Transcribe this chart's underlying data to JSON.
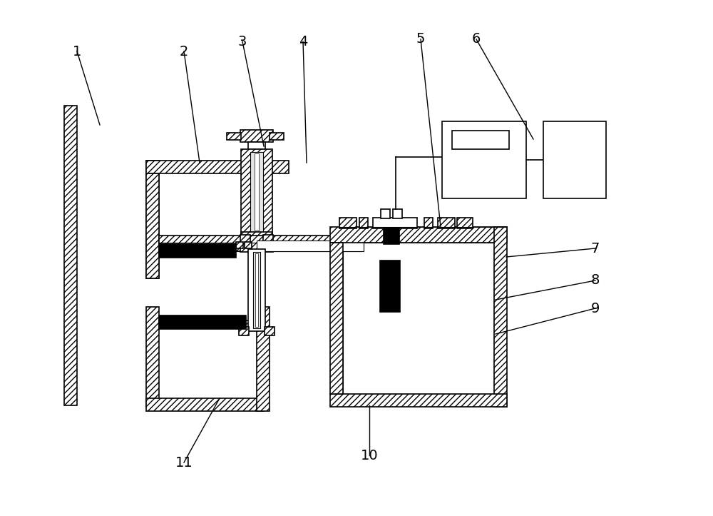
{
  "bg_color": "#ffffff",
  "lc": "#000000",
  "fig_w": 10.0,
  "fig_h": 7.23,
  "dpi": 100,
  "labels": [
    [
      "1",
      108,
      72,
      140,
      175
    ],
    [
      "2",
      258,
      72,
      280,
      228
    ],
    [
      "3",
      340,
      58,
      370,
      205
    ],
    [
      "4",
      425,
      58,
      430,
      228
    ],
    [
      "5",
      590,
      55,
      618,
      318
    ],
    [
      "6",
      668,
      55,
      748,
      195
    ],
    [
      "7",
      835,
      348,
      710,
      360
    ],
    [
      "8",
      835,
      393,
      695,
      420
    ],
    [
      "9",
      835,
      432,
      695,
      468
    ],
    [
      "10",
      518,
      638,
      518,
      568
    ],
    [
      "11",
      258,
      648,
      308,
      558
    ]
  ]
}
